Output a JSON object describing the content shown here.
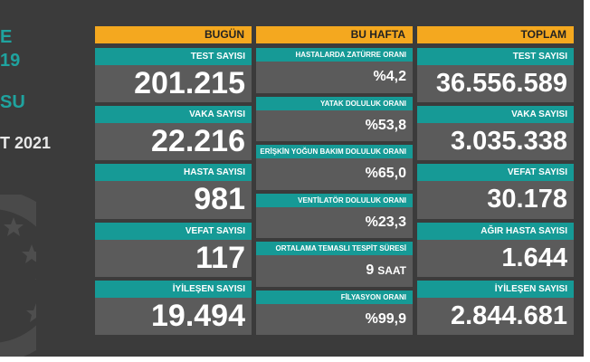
{
  "side_texts": [
    "E",
    "19",
    "SU",
    "T 2021"
  ],
  "columns": [
    {
      "header": "BUGÜN",
      "cards": [
        {
          "label": "TEST SAYISI",
          "value": "201.215"
        },
        {
          "label": "VAKA SAYISI",
          "value": "22.216"
        },
        {
          "label": "HASTA SAYISI",
          "value": "981"
        },
        {
          "label": "VEFAT SAYISI",
          "value": "117"
        },
        {
          "label": "İYİLEŞEN SAYISI",
          "value": "19.494"
        }
      ]
    },
    {
      "header": "BU HAFTA",
      "cards": [
        {
          "label": "HASTALARDA ZATÜRRE ORANI",
          "value": "%4,2"
        },
        {
          "label": "YATAK DOLULUK ORANI",
          "value": "%53,8"
        },
        {
          "label": "ERİŞKİN YOĞUN BAKIM DOLULUK ORANI",
          "value": "%65,0"
        },
        {
          "label": "VENTİLATÖR DOLULUK ORANI",
          "value": "%23,3"
        },
        {
          "label": "ORTALAMA TEMASLI TESPİT SÜRESİ",
          "value": "9",
          "unit": "SAAT"
        },
        {
          "label": "FİLYASYON ORANI",
          "value": "%99,9"
        }
      ]
    },
    {
      "header": "TOPLAM",
      "cards": [
        {
          "label": "TEST SAYISI",
          "value": "36.556.589"
        },
        {
          "label": "VAKA SAYISI",
          "value": "3.035.338"
        },
        {
          "label": "VEFAT SAYISI",
          "value": "30.178"
        },
        {
          "label": "AĞIR HASTA SAYISI",
          "value": "1.644"
        },
        {
          "label": "İYİLEŞEN SAYISI",
          "value": "2.844.681"
        }
      ]
    }
  ]
}
